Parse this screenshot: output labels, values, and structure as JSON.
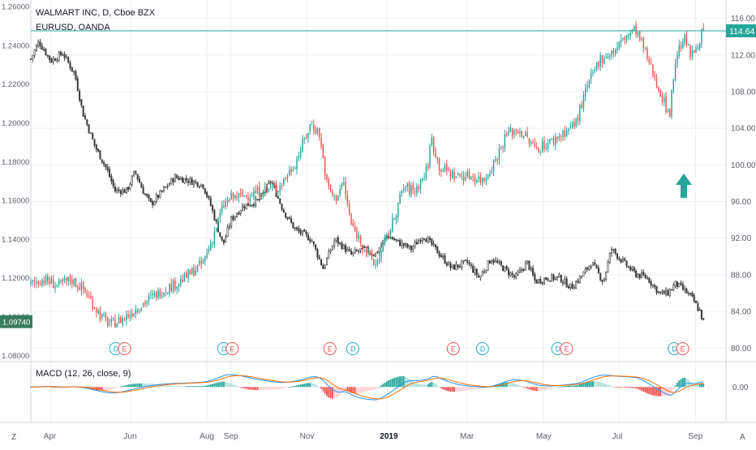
{
  "header": {
    "title": "WALMART INC, D, Cboe BZX",
    "subtitle": "EURUSD, OANDA"
  },
  "macd_label": "MACD (12, 26, close, 9)",
  "corner": {
    "left": "Z",
    "right": "A"
  },
  "colors": {
    "up": "#26a69a",
    "down": "#ef5350",
    "eurusd": "#3d3d3d",
    "price_line": "#26a69a",
    "macd_line": "#2196f3",
    "signal_line": "#ff6d00",
    "grid": "#eef0f3",
    "axis_text": "#5d606b"
  },
  "chart_data": [
    {
      "type": "candlestick",
      "title": "WALMART INC, D, Cboe BZX",
      "axis": "right",
      "y_ticks": [
        "80.00",
        "84.00",
        "88.00",
        "92.00",
        "96.00",
        "100.00",
        "104.00",
        "108.00",
        "112.00",
        "116.00"
      ],
      "ylim": [
        78.7,
        118.0
      ],
      "last_price": "114.64",
      "x_months": [
        "Apr",
        "Jun",
        "Aug",
        "Sep",
        "Nov",
        "2019",
        "Mar",
        "May",
        "Jul",
        "Sep"
      ],
      "x_month_index": [
        0.5,
        2.5,
        4.4,
        5.0,
        6.9,
        8.9,
        10.9,
        12.8,
        14.7,
        16.6
      ],
      "x_range": [
        0,
        17.2
      ],
      "anchors": [
        [
          0.0,
          87.0
        ],
        [
          0.3,
          87.5
        ],
        [
          0.7,
          86.8
        ],
        [
          1.0,
          87.5
        ],
        [
          1.3,
          86.5
        ],
        [
          1.6,
          84.5
        ],
        [
          1.8,
          83.2
        ],
        [
          2.0,
          82.6
        ],
        [
          2.3,
          83.2
        ],
        [
          2.6,
          84.2
        ],
        [
          3.0,
          85.5
        ],
        [
          3.3,
          86.3
        ],
        [
          3.7,
          87.2
        ],
        [
          4.0,
          88.2
        ],
        [
          4.3,
          89.3
        ],
        [
          4.5,
          91.5
        ],
        [
          4.8,
          95.5
        ],
        [
          5.0,
          96.4
        ],
        [
          5.4,
          96.7
        ],
        [
          5.8,
          97.2
        ],
        [
          6.2,
          97.6
        ],
        [
          6.6,
          100.2
        ],
        [
          7.0,
          104.5
        ],
        [
          7.2,
          103.5
        ],
        [
          7.4,
          97.8
        ],
        [
          7.6,
          96.2
        ],
        [
          7.8,
          98.2
        ],
        [
          8.0,
          93.5
        ],
        [
          8.3,
          91.2
        ],
        [
          8.6,
          89.0
        ],
        [
          9.0,
          93.2
        ],
        [
          9.3,
          97.5
        ],
        [
          9.6,
          97.2
        ],
        [
          9.9,
          99.5
        ],
        [
          10.0,
          103.0
        ],
        [
          10.2,
          99.8
        ],
        [
          10.6,
          98.8
        ],
        [
          11.0,
          98.8
        ],
        [
          11.3,
          98.3
        ],
        [
          11.6,
          100.5
        ],
        [
          11.9,
          103.5
        ],
        [
          12.2,
          103.8
        ],
        [
          12.6,
          101.8
        ],
        [
          13.0,
          102.5
        ],
        [
          13.3,
          103.5
        ],
        [
          13.6,
          104.5
        ],
        [
          13.9,
          108.5
        ],
        [
          14.2,
          111.5
        ],
        [
          14.6,
          112.5
        ],
        [
          14.8,
          113.8
        ],
        [
          15.1,
          114.8
        ],
        [
          15.3,
          112.8
        ],
        [
          15.5,
          110.5
        ],
        [
          15.8,
          107.0
        ],
        [
          15.95,
          105.5
        ],
        [
          16.1,
          111.5
        ],
        [
          16.3,
          114.0
        ],
        [
          16.5,
          111.8
        ],
        [
          16.7,
          113.8
        ],
        [
          16.8,
          114.64
        ]
      ],
      "event_markers": [
        {
          "label": "D",
          "x": 2.12
        },
        {
          "label": "E",
          "x": 2.34
        },
        {
          "label": "D",
          "x": 4.82
        },
        {
          "label": "E",
          "x": 5.03
        },
        {
          "label": "E",
          "x": 7.47
        },
        {
          "label": "D",
          "x": 8.04
        },
        {
          "label": "E",
          "x": 10.55
        },
        {
          "label": "D",
          "x": 11.28
        },
        {
          "label": "D",
          "x": 13.16
        },
        {
          "label": "E",
          "x": 13.38
        },
        {
          "label": "D",
          "x": 16.07
        },
        {
          "label": "E",
          "x": 16.28
        }
      ]
    },
    {
      "type": "candlestick",
      "title": "EURUSD, OANDA",
      "axis": "left",
      "y_ticks": [
        "1.08000",
        "1.10000",
        "1.12000",
        "1.14000",
        "1.16000",
        "1.18000",
        "1.20000",
        "1.22000",
        "1.24000",
        "1.26000"
      ],
      "ylim": [
        1.0776,
        1.2634
      ],
      "last_price": "1.09740",
      "anchors": [
        [
          0.0,
          1.233
        ],
        [
          0.2,
          1.242
        ],
        [
          0.5,
          1.232
        ],
        [
          0.8,
          1.236
        ],
        [
          1.1,
          1.225
        ],
        [
          1.3,
          1.205
        ],
        [
          1.6,
          1.188
        ],
        [
          1.9,
          1.176
        ],
        [
          2.1,
          1.165
        ],
        [
          2.4,
          1.165
        ],
        [
          2.6,
          1.175
        ],
        [
          2.8,
          1.165
        ],
        [
          3.0,
          1.158
        ],
        [
          3.3,
          1.165
        ],
        [
          3.6,
          1.172
        ],
        [
          4.0,
          1.17
        ],
        [
          4.3,
          1.168
        ],
        [
          4.5,
          1.157
        ],
        [
          4.8,
          1.137
        ],
        [
          5.0,
          1.15
        ],
        [
          5.3,
          1.157
        ],
        [
          5.7,
          1.16
        ],
        [
          6.0,
          1.17
        ],
        [
          6.3,
          1.155
        ],
        [
          6.6,
          1.145
        ],
        [
          7.0,
          1.14
        ],
        [
          7.3,
          1.125
        ],
        [
          7.6,
          1.14
        ],
        [
          8.0,
          1.132
        ],
        [
          8.3,
          1.135
        ],
        [
          8.6,
          1.132
        ],
        [
          8.9,
          1.142
        ],
        [
          9.2,
          1.138
        ],
        [
          9.5,
          1.135
        ],
        [
          9.8,
          1.142
        ],
        [
          10.1,
          1.135
        ],
        [
          10.5,
          1.125
        ],
        [
          10.9,
          1.128
        ],
        [
          11.2,
          1.12
        ],
        [
          11.5,
          1.13
        ],
        [
          11.8,
          1.125
        ],
        [
          12.1,
          1.12
        ],
        [
          12.4,
          1.128
        ],
        [
          12.6,
          1.118
        ],
        [
          12.9,
          1.12
        ],
        [
          13.2,
          1.12
        ],
        [
          13.5,
          1.115
        ],
        [
          13.8,
          1.122
        ],
        [
          14.0,
          1.128
        ],
        [
          14.3,
          1.118
        ],
        [
          14.5,
          1.135
        ],
        [
          14.8,
          1.128
        ],
        [
          15.1,
          1.122
        ],
        [
          15.4,
          1.12
        ],
        [
          15.7,
          1.112
        ],
        [
          15.9,
          1.112
        ],
        [
          16.1,
          1.117
        ],
        [
          16.3,
          1.114
        ],
        [
          16.5,
          1.11
        ],
        [
          16.7,
          1.103
        ],
        [
          16.8,
          1.0974
        ]
      ]
    },
    {
      "type": "macd",
      "title": "MACD (12, 26, close, 9)",
      "y_ticks": [
        "0.00"
      ],
      "ylim": [
        -6.5,
        4.2
      ]
    }
  ]
}
